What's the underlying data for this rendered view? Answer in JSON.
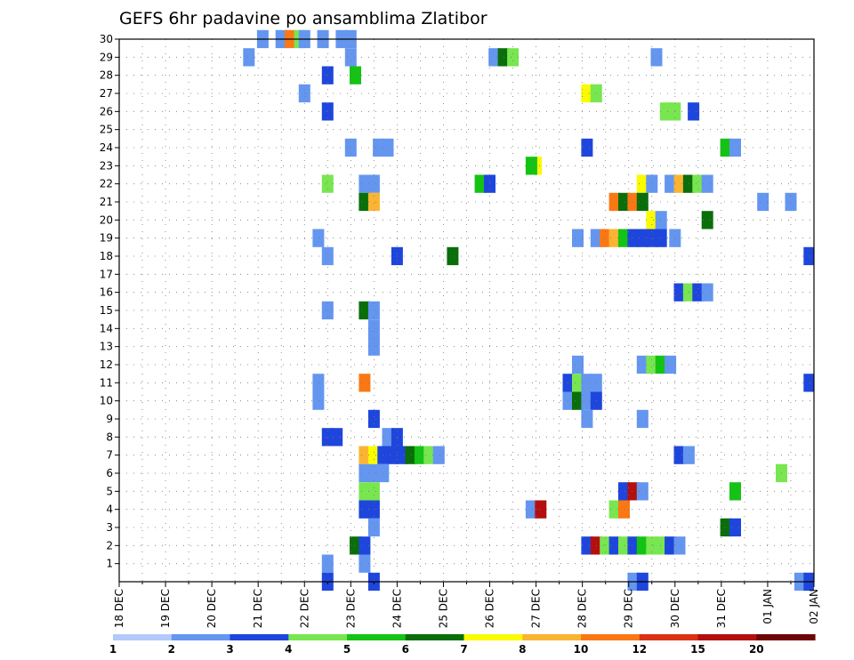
{
  "chart_data": {
    "type": "heatmap",
    "title": "GEFS 6hr padavine po ansamblima Zlatibor",
    "y_range": [
      0,
      30
    ],
    "y_ticks": [
      1,
      2,
      3,
      4,
      5,
      6,
      7,
      8,
      9,
      10,
      11,
      12,
      13,
      14,
      15,
      16,
      17,
      18,
      19,
      20,
      21,
      22,
      23,
      24,
      25,
      26,
      27,
      28,
      29,
      30
    ],
    "x_tick_labels": [
      "18 DEC",
      "19 DEC",
      "20 DEC",
      "21 DEC",
      "22 DEC",
      "23 DEC",
      "24 DEC",
      "25 DEC",
      "26 DEC",
      "27 DEC",
      "28 DEC",
      "29 DEC",
      "30 DEC",
      "31 DEC",
      "01 JAN",
      "02 JAN"
    ],
    "grid": true,
    "colorbar": {
      "colors": [
        "#b4c8fa",
        "#6496f0",
        "#1e46dc",
        "#78e650",
        "#14c314",
        "#0a6e0a",
        "#fafa00",
        "#fab432",
        "#fa7814",
        "#dc3214",
        "#b40f0f",
        "#6e0505"
      ],
      "labels": [
        "1",
        "2",
        "3",
        "4",
        "5",
        "6",
        "7",
        "8",
        "10",
        "12",
        "15",
        "20"
      ]
    },
    "cells": [
      [
        3.1,
        30,
        1
      ],
      [
        3.5,
        30,
        1
      ],
      [
        3.7,
        30,
        8
      ],
      [
        3.9,
        30,
        3
      ],
      [
        4.0,
        30,
        1
      ],
      [
        4.4,
        30,
        1
      ],
      [
        4.8,
        30,
        1
      ],
      [
        5.0,
        30,
        1
      ],
      [
        5.0,
        29,
        1
      ],
      [
        2.8,
        29,
        1
      ],
      [
        8.1,
        29,
        1
      ],
      [
        8.3,
        29,
        5
      ],
      [
        8.5,
        29,
        3
      ],
      [
        11.6,
        29,
        1
      ],
      [
        4.5,
        28,
        2
      ],
      [
        5.1,
        28,
        4
      ],
      [
        4.0,
        27,
        1
      ],
      [
        10.1,
        27,
        6
      ],
      [
        10.3,
        27,
        3
      ],
      [
        4.5,
        26,
        2
      ],
      [
        11.8,
        26,
        3
      ],
      [
        12.0,
        26,
        3
      ],
      [
        12.4,
        26,
        2
      ],
      [
        5.0,
        24,
        1
      ],
      [
        5.6,
        24,
        1
      ],
      [
        5.8,
        24,
        1
      ],
      [
        10.1,
        24,
        2
      ],
      [
        13.1,
        24,
        4
      ],
      [
        13.3,
        24,
        1
      ],
      [
        9.0,
        23,
        6
      ],
      [
        8.9,
        23,
        4
      ],
      [
        4.5,
        22,
        3
      ],
      [
        5.3,
        22,
        1
      ],
      [
        5.5,
        22,
        1
      ],
      [
        7.8,
        22,
        4
      ],
      [
        8.0,
        22,
        2
      ],
      [
        11.3,
        22,
        6
      ],
      [
        11.5,
        22,
        1
      ],
      [
        11.9,
        22,
        1
      ],
      [
        12.1,
        22,
        7
      ],
      [
        12.3,
        22,
        5
      ],
      [
        12.5,
        22,
        3
      ],
      [
        12.7,
        22,
        1
      ],
      [
        5.3,
        21,
        5
      ],
      [
        5.5,
        21,
        7
      ],
      [
        10.7,
        21,
        8
      ],
      [
        10.9,
        21,
        5
      ],
      [
        11.1,
        21,
        8
      ],
      [
        11.3,
        21,
        5
      ],
      [
        13.9,
        21,
        1
      ],
      [
        14.5,
        21,
        1
      ],
      [
        11.5,
        20,
        6
      ],
      [
        11.7,
        20,
        1
      ],
      [
        12.7,
        20,
        5
      ],
      [
        4.3,
        19,
        1
      ],
      [
        9.9,
        19,
        1
      ],
      [
        10.3,
        19,
        1
      ],
      [
        10.5,
        19,
        8
      ],
      [
        10.7,
        19,
        7
      ],
      [
        10.9,
        19,
        4
      ],
      [
        11.1,
        19,
        2
      ],
      [
        11.3,
        19,
        2
      ],
      [
        11.5,
        19,
        2
      ],
      [
        11.7,
        19,
        2
      ],
      [
        12.0,
        19,
        1
      ],
      [
        4.5,
        18,
        1
      ],
      [
        6.0,
        18,
        2
      ],
      [
        7.2,
        18,
        5
      ],
      [
        14.9,
        18,
        2
      ],
      [
        12.1,
        16,
        2
      ],
      [
        12.3,
        16,
        3
      ],
      [
        12.5,
        16,
        2
      ],
      [
        12.7,
        16,
        1
      ],
      [
        4.5,
        15,
        1
      ],
      [
        5.3,
        15,
        5
      ],
      [
        5.5,
        15,
        1
      ],
      [
        5.5,
        14,
        1
      ],
      [
        5.5,
        13,
        1
      ],
      [
        9.9,
        12,
        1
      ],
      [
        11.3,
        12,
        1
      ],
      [
        11.5,
        12,
        3
      ],
      [
        11.7,
        12,
        4
      ],
      [
        11.9,
        12,
        1
      ],
      [
        4.3,
        11,
        1
      ],
      [
        5.3,
        11,
        8
      ],
      [
        9.7,
        11,
        2
      ],
      [
        9.9,
        11,
        3
      ],
      [
        10.1,
        11,
        1
      ],
      [
        10.3,
        11,
        1
      ],
      [
        14.9,
        11,
        2
      ],
      [
        4.3,
        10,
        1
      ],
      [
        9.7,
        10,
        1
      ],
      [
        9.9,
        10,
        5
      ],
      [
        10.1,
        10,
        1
      ],
      [
        10.3,
        10,
        2
      ],
      [
        5.5,
        9,
        2
      ],
      [
        10.1,
        9,
        1
      ],
      [
        11.3,
        9,
        1
      ],
      [
        4.5,
        8,
        2
      ],
      [
        4.7,
        8,
        2
      ],
      [
        5.8,
        8,
        1
      ],
      [
        6.0,
        8,
        2
      ],
      [
        5.3,
        7,
        7
      ],
      [
        5.5,
        7,
        6
      ],
      [
        5.7,
        7,
        2
      ],
      [
        5.9,
        7,
        2
      ],
      [
        6.1,
        7,
        2
      ],
      [
        6.3,
        7,
        5
      ],
      [
        6.5,
        7,
        4
      ],
      [
        6.7,
        7,
        3
      ],
      [
        6.9,
        7,
        1
      ],
      [
        12.1,
        7,
        2
      ],
      [
        12.3,
        7,
        1
      ],
      [
        5.3,
        6,
        1
      ],
      [
        5.5,
        6,
        1
      ],
      [
        5.7,
        6,
        1
      ],
      [
        14.3,
        6,
        3
      ],
      [
        5.3,
        5,
        3
      ],
      [
        5.5,
        5,
        3
      ],
      [
        10.9,
        5,
        2
      ],
      [
        11.1,
        5,
        10
      ],
      [
        11.3,
        5,
        1
      ],
      [
        13.3,
        5,
        4
      ],
      [
        5.3,
        4,
        2
      ],
      [
        5.5,
        4,
        2
      ],
      [
        8.9,
        4,
        1
      ],
      [
        9.1,
        4,
        10
      ],
      [
        10.7,
        4,
        3
      ],
      [
        10.9,
        4,
        8
      ],
      [
        5.5,
        3,
        1
      ],
      [
        13.1,
        3,
        5
      ],
      [
        13.3,
        3,
        2
      ],
      [
        5.1,
        2,
        5
      ],
      [
        5.3,
        2,
        2
      ],
      [
        10.1,
        2,
        2
      ],
      [
        10.3,
        2,
        10
      ],
      [
        10.5,
        2,
        3
      ],
      [
        10.7,
        2,
        2
      ],
      [
        10.9,
        2,
        3
      ],
      [
        11.1,
        2,
        2
      ],
      [
        11.3,
        2,
        4
      ],
      [
        11.5,
        2,
        3
      ],
      [
        11.7,
        2,
        3
      ],
      [
        11.9,
        2,
        2
      ],
      [
        12.1,
        2,
        1
      ],
      [
        4.5,
        1,
        1
      ],
      [
        5.3,
        1,
        1
      ],
      [
        11.1,
        0,
        1
      ],
      [
        11.3,
        0,
        2
      ],
      [
        14.7,
        0,
        1
      ],
      [
        14.9,
        0,
        2
      ],
      [
        4.5,
        0,
        2
      ],
      [
        5.5,
        0,
        2
      ]
    ]
  }
}
